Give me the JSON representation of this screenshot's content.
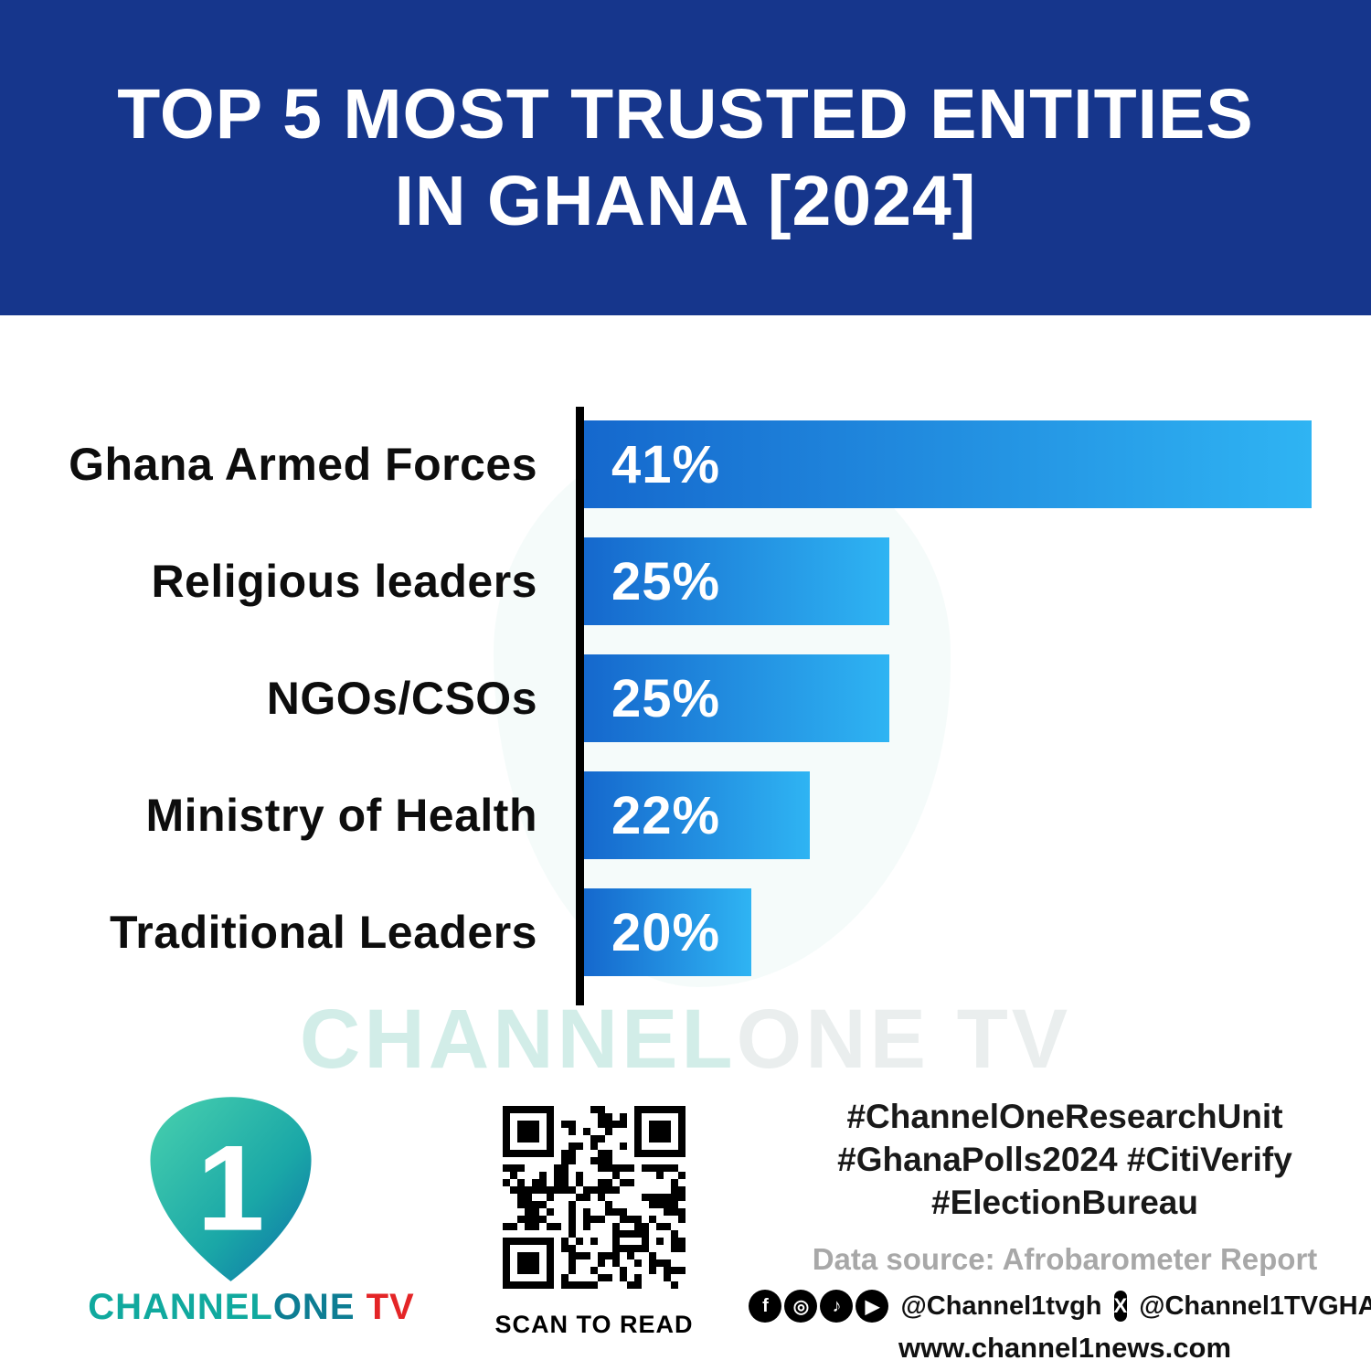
{
  "header": {
    "title_line1": "TOP 5 MOST TRUSTED ENTITIES",
    "title_line2": "IN GHANA [2024]",
    "background_color": "#16368C"
  },
  "chart_data": {
    "type": "bar",
    "orientation": "horizontal",
    "title": "Top 5 Most Trusted Entities in Ghana [2024]",
    "categories": [
      "Ghana Armed Forces",
      "Religious leaders",
      "NGOs/CSOs",
      "Ministry of Health",
      "Traditional Leaders"
    ],
    "values": [
      41,
      25,
      25,
      22,
      20
    ],
    "value_labels": [
      "41%",
      "25%",
      "25%",
      "22%",
      "20%"
    ],
    "unit": "%",
    "bar_display_width_pct": [
      100,
      42,
      42,
      31,
      23
    ],
    "bar_color_start": "#1568CD",
    "bar_color_end": "#2FB4F3",
    "axis_color": "#000000",
    "label_color": "#0D0D0D",
    "value_label_color": "#FFFFFF",
    "grid": false,
    "legend": false
  },
  "watermark": {
    "part1": "CHANNEL",
    "part2": "ONE TV"
  },
  "footer": {
    "logo": {
      "numeral": "1",
      "brand_channel": "CHANNEL",
      "brand_one": "ONE",
      "brand_tv": " TV"
    },
    "qr": {
      "caption": "SCAN TO READ"
    },
    "hashtags": [
      "#ChannelOneResearchUnit",
      "#GhanaPolls2024 #CitiVerify",
      "#ElectionBureau"
    ],
    "data_source": "Data source: Afrobarometer Report",
    "social": {
      "handle_main": "@Channel1tvgh",
      "handle_x": "@Channel1TVGHA",
      "glyphs": {
        "facebook": "f",
        "instagram": "◎",
        "tiktok": "♪",
        "youtube": "▶",
        "x": "X"
      }
    },
    "website": "www.channel1news.com"
  }
}
